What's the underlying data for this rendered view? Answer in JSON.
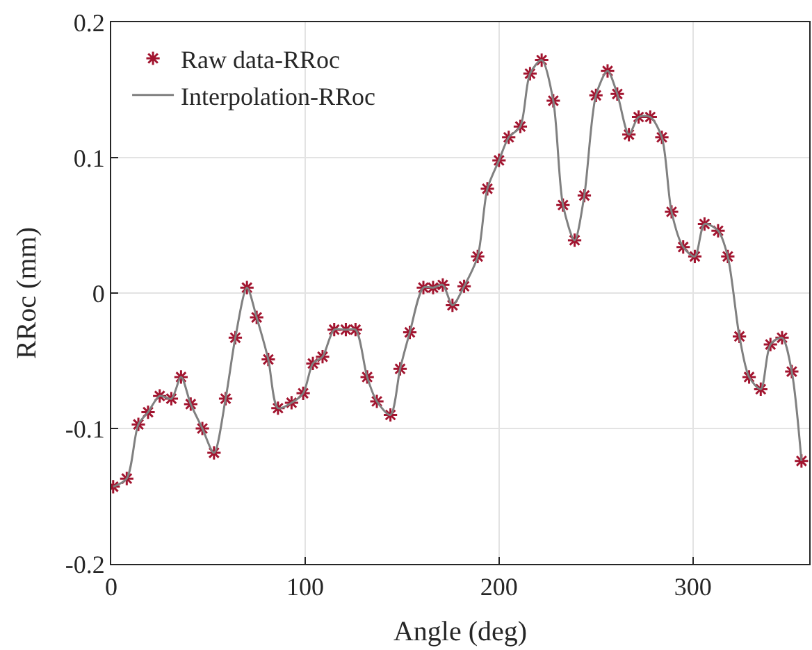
{
  "chart_data": {
    "type": "scatter",
    "xlabel": "Angle (deg)",
    "ylabel": "RRoc (mm)",
    "x": [
      1,
      8,
      14,
      19,
      25,
      31,
      36,
      41,
      47,
      53,
      59,
      64,
      70,
      75,
      81,
      86,
      93,
      99,
      104,
      109,
      115,
      121,
      126,
      132,
      137,
      144,
      149,
      154,
      161,
      166,
      171,
      176,
      182,
      189,
      194,
      200,
      205,
      211,
      216,
      222,
      228,
      233,
      239,
      244,
      250,
      256,
      261,
      267,
      272,
      278,
      284,
      289,
      295,
      301,
      306,
      313,
      318,
      324,
      329,
      335,
      340,
      346,
      351,
      356
    ],
    "series": [
      {
        "name": "Raw data-RRoc",
        "marker": "cross",
        "color": "#a2142f",
        "values": [
          -0.143,
          -0.137,
          -0.097,
          -0.088,
          -0.076,
          -0.078,
          -0.062,
          -0.082,
          -0.1,
          -0.118,
          -0.078,
          -0.033,
          0.004,
          -0.018,
          -0.049,
          -0.085,
          -0.081,
          -0.074,
          -0.052,
          -0.047,
          -0.027,
          -0.027,
          -0.027,
          -0.062,
          -0.08,
          -0.09,
          -0.056,
          -0.029,
          0.004,
          0.004,
          0.006,
          -0.009,
          0.005,
          0.027,
          0.077,
          0.098,
          0.115,
          0.123,
          0.162,
          0.172,
          0.142,
          0.065,
          0.039,
          0.072,
          0.146,
          0.164,
          0.147,
          0.117,
          0.13,
          0.13,
          0.115,
          0.06,
          0.034,
          0.027,
          0.051,
          0.046,
          0.027,
          -0.032,
          -0.062,
          -0.071,
          -0.038,
          -0.033,
          -0.058,
          -0.124
        ]
      },
      {
        "name": "Interpolation-RRoc",
        "type": "line",
        "marker": "none",
        "color": "#808080",
        "values": [
          -0.143,
          -0.137,
          -0.097,
          -0.088,
          -0.076,
          -0.078,
          -0.062,
          -0.082,
          -0.1,
          -0.118,
          -0.078,
          -0.033,
          0.004,
          -0.018,
          -0.049,
          -0.085,
          -0.081,
          -0.074,
          -0.052,
          -0.047,
          -0.027,
          -0.027,
          -0.027,
          -0.062,
          -0.08,
          -0.09,
          -0.056,
          -0.029,
          0.004,
          0.004,
          0.006,
          -0.009,
          0.005,
          0.027,
          0.077,
          0.098,
          0.115,
          0.123,
          0.162,
          0.172,
          0.142,
          0.065,
          0.039,
          0.072,
          0.146,
          0.164,
          0.147,
          0.117,
          0.13,
          0.13,
          0.115,
          0.06,
          0.034,
          0.027,
          0.051,
          0.046,
          0.027,
          -0.032,
          -0.062,
          -0.071,
          -0.038,
          -0.033,
          -0.058,
          -0.124
        ]
      }
    ],
    "xlim": [
      0,
      360
    ],
    "xticks": [
      0,
      100,
      200,
      300
    ],
    "ylim": [
      -0.2,
      0.2
    ],
    "yticks": [
      {
        "value": -0.2,
        "label": "-0.2"
      },
      {
        "value": -0.1,
        "label": "-0.1"
      },
      0,
      0.1,
      0.2
    ],
    "grid": true,
    "legend": "top left",
    "line_style": "solid"
  }
}
